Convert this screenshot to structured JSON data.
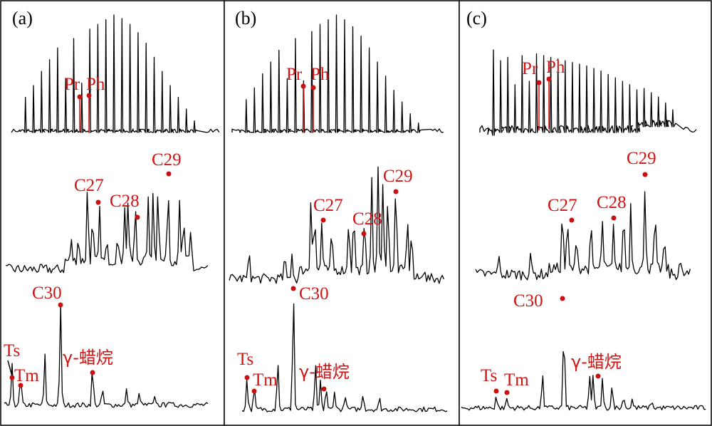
{
  "colors": {
    "annotation": "#d01515",
    "trace": "#000000",
    "frame": "#000000"
  },
  "chart_data": [
    {
      "type": "line",
      "panel_label": "(a)",
      "traces": [
        {
          "id": "alkanes",
          "peak_heights": [
            0.3,
            0.4,
            0.52,
            0.62,
            0.72,
            0.46,
            0.8,
            0.42,
            0.88,
            0.92,
            0.96,
            1.0,
            0.97,
            0.92,
            0.85,
            0.76,
            0.64,
            0.52,
            0.4,
            0.3,
            0.2,
            0.1
          ],
          "annotations": [
            {
              "label": "Pr",
              "peak": 5,
              "marked": true
            },
            {
              "label": "Ph",
              "peak": 7,
              "marked": true
            }
          ]
        },
        {
          "id": "steranes",
          "annotations": [
            {
              "label": "C27"
            },
            {
              "label": "C28"
            },
            {
              "label": "C29"
            }
          ]
        },
        {
          "id": "terpanes",
          "annotations": [
            {
              "label": "Ts"
            },
            {
              "label": "Tm"
            },
            {
              "label": "C30"
            },
            {
              "label": "γ-蜡烷"
            }
          ]
        }
      ]
    },
    {
      "type": "line",
      "panel_label": "(b)",
      "traces": [
        {
          "id": "alkanes",
          "peak_heights": [
            0.28,
            0.38,
            0.5,
            0.6,
            0.7,
            0.46,
            0.8,
            0.44,
            0.86,
            0.92,
            0.96,
            1.0,
            0.96,
            0.9,
            0.82,
            0.72,
            0.6,
            0.48,
            0.36,
            0.26,
            0.16,
            0.08
          ],
          "annotations": [
            {
              "label": "Pr",
              "peak": 5,
              "marked": true
            },
            {
              "label": "Ph",
              "peak": 7,
              "marked": true
            }
          ]
        },
        {
          "id": "steranes",
          "annotations": [
            {
              "label": "C27"
            },
            {
              "label": "C28"
            },
            {
              "label": "C29"
            }
          ]
        },
        {
          "id": "terpanes",
          "annotations": [
            {
              "label": "Ts"
            },
            {
              "label": "Tm"
            },
            {
              "label": "C30"
            },
            {
              "label": "γ-蜡烷"
            }
          ]
        }
      ]
    },
    {
      "type": "line",
      "panel_label": "(c)",
      "traces": [
        {
          "id": "alkanes",
          "peak_heights": [
            1.0,
            0.84,
            0.88,
            0.56,
            0.9,
            0.6,
            0.92,
            0.9,
            0.88,
            0.86,
            0.84,
            0.82,
            0.8,
            0.78,
            0.75,
            0.72,
            0.68,
            0.64,
            0.6,
            0.56,
            0.5,
            0.45,
            0.4,
            0.35,
            0.28,
            0.2
          ],
          "annotations": [
            {
              "label": "Pr",
              "peak": 3,
              "marked": true
            },
            {
              "label": "Ph",
              "peak": 5,
              "marked": true
            }
          ]
        },
        {
          "id": "steranes",
          "annotations": [
            {
              "label": "C27"
            },
            {
              "label": "C28"
            },
            {
              "label": "C29"
            }
          ]
        },
        {
          "id": "terpanes",
          "annotations": [
            {
              "label": "C30"
            },
            {
              "label": "Ts"
            },
            {
              "label": "Tm"
            },
            {
              "label": "γ-蜡烷"
            }
          ]
        }
      ]
    }
  ]
}
